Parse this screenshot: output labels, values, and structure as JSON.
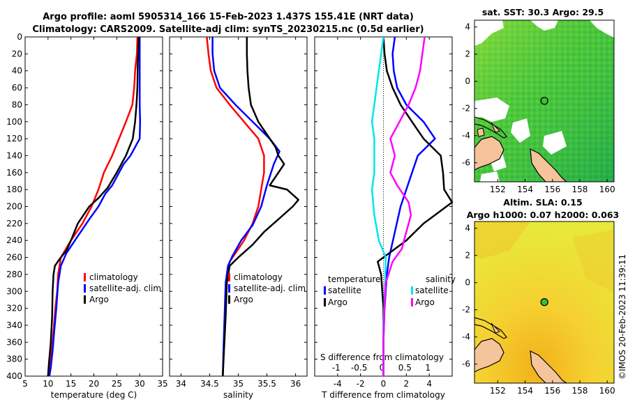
{
  "figure": {
    "title_line1": "Argo profile: aoml 5905314_166 15-Feb-2023 1.437S 155.41E (NRT data)",
    "title_line2": "Climatology: CARS2009. Satellite-adj clim: synTS_20230215.nc (0.5d earlier)",
    "credit": "©IMOS 20-Feb-2023 11:39:11"
  },
  "colors": {
    "climatology": "#ff0000",
    "satellite": "#0000ff",
    "argo": "#000000",
    "salinity_satellite": "#00e5ee",
    "salinity_argo": "#ff00ff",
    "land": "#f5c49b"
  },
  "chart_data": [
    {
      "id": "temperature",
      "type": "line",
      "xlabel": "temperature (deg C)",
      "xlim": [
        5,
        35
      ],
      "xticks": [
        5,
        10,
        15,
        20,
        25,
        30,
        35
      ],
      "ylim": [
        0,
        400
      ],
      "yticks": [
        0,
        20,
        40,
        60,
        80,
        100,
        120,
        140,
        160,
        180,
        200,
        220,
        240,
        260,
        280,
        300,
        320,
        340,
        360,
        380,
        400
      ],
      "legend": [
        "climatology",
        "satellite-adj. clim",
        "Argo"
      ],
      "series": [
        {
          "name": "climatology",
          "color": "#ff0000",
          "points": [
            [
              29.5,
              0
            ],
            [
              29.4,
              20
            ],
            [
              29.0,
              40
            ],
            [
              28.8,
              60
            ],
            [
              28.4,
              80
            ],
            [
              27.0,
              100
            ],
            [
              25.5,
              120
            ],
            [
              24.0,
              140
            ],
            [
              22.2,
              160
            ],
            [
              21.0,
              180
            ],
            [
              19.5,
              200
            ],
            [
              17.5,
              220
            ],
            [
              15.0,
              240
            ],
            [
              12.8,
              260
            ],
            [
              12.2,
              280
            ],
            [
              12.0,
              300
            ],
            [
              11.6,
              320
            ],
            [
              11.3,
              340
            ],
            [
              11.0,
              360
            ],
            [
              10.6,
              380
            ],
            [
              10.2,
              400
            ]
          ]
        },
        {
          "name": "satellite-adj. clim",
          "color": "#0000ff",
          "points": [
            [
              30.0,
              0
            ],
            [
              30.0,
              40
            ],
            [
              30.0,
              80
            ],
            [
              30.1,
              100
            ],
            [
              30.0,
              120
            ],
            [
              28.0,
              140
            ],
            [
              26.5,
              150
            ],
            [
              25.5,
              160
            ],
            [
              24.0,
              175
            ],
            [
              22.5,
              185
            ],
            [
              21.0,
              200
            ],
            [
              19.0,
              215
            ],
            [
              16.5,
              235
            ],
            [
              14.0,
              255
            ],
            [
              12.8,
              270
            ],
            [
              12.2,
              290
            ],
            [
              11.8,
              320
            ],
            [
              11.3,
              350
            ],
            [
              11.0,
              370
            ],
            [
              10.6,
              390
            ],
            [
              10.3,
              400
            ]
          ]
        },
        {
          "name": "Argo",
          "color": "#000000",
          "points": [
            [
              29.8,
              0
            ],
            [
              29.6,
              30
            ],
            [
              29.5,
              60
            ],
            [
              29.3,
              80
            ],
            [
              29.0,
              100
            ],
            [
              28.5,
              120
            ],
            [
              27.0,
              140
            ],
            [
              25.0,
              160
            ],
            [
              23.0,
              178
            ],
            [
              21.0,
              190
            ],
            [
              19.0,
              200
            ],
            [
              16.5,
              220
            ],
            [
              15.0,
              240
            ],
            [
              14.0,
              252
            ],
            [
              12.5,
              262
            ],
            [
              11.5,
              270
            ],
            [
              11.2,
              280
            ],
            [
              11.0,
              300
            ],
            [
              10.9,
              330
            ],
            [
              10.6,
              360
            ],
            [
              10.2,
              385
            ],
            [
              10.0,
              400
            ]
          ]
        }
      ]
    },
    {
      "id": "salinity",
      "type": "line",
      "xlabel": "salinity",
      "xlim": [
        33.8,
        36.2
      ],
      "xticks": [
        34,
        34.5,
        35,
        35.5,
        36
      ],
      "ylim": [
        0,
        400
      ],
      "legend": [
        "climatology",
        "satellite-adj. clim",
        "Argo"
      ],
      "series": [
        {
          "name": "climatology",
          "color": "#ff0000",
          "points": [
            [
              34.45,
              0
            ],
            [
              34.48,
              20
            ],
            [
              34.52,
              40
            ],
            [
              34.62,
              60
            ],
            [
              34.85,
              80
            ],
            [
              35.1,
              100
            ],
            [
              35.35,
              120
            ],
            [
              35.45,
              140
            ],
            [
              35.45,
              160
            ],
            [
              35.4,
              180
            ],
            [
              35.35,
              200
            ],
            [
              35.25,
              220
            ],
            [
              35.1,
              240
            ],
            [
              34.95,
              255
            ],
            [
              34.85,
              265
            ],
            [
              34.8,
              280
            ],
            [
              34.77,
              320
            ],
            [
              34.75,
              360
            ],
            [
              34.73,
              400
            ]
          ]
        },
        {
          "name": "satellite-adj. clim",
          "color": "#0000ff",
          "points": [
            [
              34.55,
              0
            ],
            [
              34.55,
              20
            ],
            [
              34.58,
              40
            ],
            [
              34.68,
              60
            ],
            [
              34.95,
              80
            ],
            [
              35.25,
              100
            ],
            [
              35.55,
              120
            ],
            [
              35.72,
              135
            ],
            [
              35.62,
              150
            ],
            [
              35.5,
              175
            ],
            [
              35.4,
              200
            ],
            [
              35.25,
              222
            ],
            [
              35.05,
              240
            ],
            [
              34.9,
              258
            ],
            [
              34.82,
              270
            ],
            [
              34.78,
              290
            ],
            [
              34.76,
              330
            ],
            [
              34.74,
              370
            ],
            [
              34.73,
              400
            ]
          ]
        },
        {
          "name": "Argo",
          "color": "#000000",
          "points": [
            [
              35.15,
              0
            ],
            [
              35.15,
              20
            ],
            [
              35.16,
              40
            ],
            [
              35.18,
              60
            ],
            [
              35.22,
              80
            ],
            [
              35.35,
              100
            ],
            [
              35.5,
              115
            ],
            [
              35.65,
              130
            ],
            [
              35.7,
              140
            ],
            [
              35.8,
              150
            ],
            [
              35.7,
              160
            ],
            [
              35.55,
              175
            ],
            [
              35.85,
              180
            ],
            [
              36.05,
              192
            ],
            [
              35.95,
              200
            ],
            [
              35.7,
              215
            ],
            [
              35.45,
              230
            ],
            [
              35.25,
              245
            ],
            [
              35.0,
              260
            ],
            [
              34.85,
              270
            ],
            [
              34.8,
              290
            ],
            [
              34.78,
              330
            ],
            [
              34.75,
              370
            ],
            [
              34.73,
              400
            ]
          ]
        }
      ]
    },
    {
      "id": "difference",
      "type": "line",
      "xlabel": "T difference from climatology",
      "xlim": [
        -6,
        6
      ],
      "xticks": [
        -4,
        -2,
        0,
        2,
        4
      ],
      "top_axis": {
        "label": "S difference from climatology",
        "ticks": [
          "-1",
          "-0.5",
          "0",
          "0.5",
          "1"
        ],
        "values": [
          -1,
          -0.5,
          0,
          0.5,
          1
        ]
      },
      "ylim": [
        0,
        400
      ],
      "legend": {
        "temperature": [
          "satellite",
          "Argo"
        ],
        "salinity": [
          "satellite",
          "Argo"
        ]
      },
      "legend_headers": {
        "temperature": "temperature",
        "salinity": "salinity"
      },
      "series": [
        {
          "name": "temperature satellite",
          "color": "#0000ff",
          "points": [
            [
              1.0,
              0
            ],
            [
              0.8,
              20
            ],
            [
              0.9,
              40
            ],
            [
              1.2,
              60
            ],
            [
              2.0,
              80
            ],
            [
              3.5,
              100
            ],
            [
              4.5,
              120
            ],
            [
              3.0,
              140
            ],
            [
              2.5,
              160
            ],
            [
              2.0,
              180
            ],
            [
              1.5,
              200
            ],
            [
              1.0,
              230
            ],
            [
              0.5,
              260
            ],
            [
              0.3,
              280
            ],
            [
              0.1,
              320
            ],
            [
              0.0,
              360
            ],
            [
              0.0,
              400
            ]
          ]
        },
        {
          "name": "temperature Argo",
          "color": "#000000",
          "points": [
            [
              0.0,
              0
            ],
            [
              0.1,
              20
            ],
            [
              0.3,
              40
            ],
            [
              0.8,
              60
            ],
            [
              1.5,
              80
            ],
            [
              2.5,
              100
            ],
            [
              3.5,
              120
            ],
            [
              5.0,
              140
            ],
            [
              5.2,
              160
            ],
            [
              5.3,
              180
            ],
            [
              6.0,
              195
            ],
            [
              4.5,
              210
            ],
            [
              3.5,
              220
            ],
            [
              2.0,
              240
            ],
            [
              0.5,
              255
            ],
            [
              -0.5,
              265
            ],
            [
              -0.2,
              280
            ],
            [
              0.0,
              320
            ],
            [
              0.0,
              360
            ],
            [
              0.0,
              400
            ]
          ]
        },
        {
          "name": "salinity satellite",
          "color": "#00e5ee",
          "points": [
            [
              0.0,
              0
            ],
            [
              -0.1,
              40
            ],
            [
              -0.2,
              80
            ],
            [
              -0.25,
              100
            ],
            [
              -0.2,
              120
            ],
            [
              -0.2,
              160
            ],
            [
              -0.25,
              180
            ],
            [
              -0.2,
              210
            ],
            [
              -0.1,
              240
            ],
            [
              0.05,
              260
            ],
            [
              0.03,
              300
            ],
            [
              0.0,
              340
            ],
            [
              0.0,
              400
            ]
          ]
        },
        {
          "name": "salinity Argo",
          "color": "#ff00ff",
          "points": [
            [
              0.9,
              0
            ],
            [
              0.85,
              20
            ],
            [
              0.8,
              40
            ],
            [
              0.7,
              60
            ],
            [
              0.55,
              80
            ],
            [
              0.35,
              100
            ],
            [
              0.15,
              120
            ],
            [
              0.25,
              140
            ],
            [
              0.15,
              160
            ],
            [
              0.3,
              175
            ],
            [
              0.55,
              195
            ],
            [
              0.6,
              210
            ],
            [
              0.5,
              230
            ],
            [
              0.4,
              250
            ],
            [
              0.2,
              265
            ],
            [
              0.05,
              290
            ],
            [
              0.02,
              320
            ],
            [
              0.0,
              360
            ],
            [
              0.0,
              400
            ]
          ]
        }
      ]
    },
    {
      "id": "sst_map",
      "type": "heatmap",
      "title": "sat. SST: 30.3 Argo: 29.5",
      "xlim": [
        150.3,
        160.5
      ],
      "ylim": [
        -7.4,
        4.5
      ],
      "xticks": [
        152,
        154,
        156,
        158,
        160
      ],
      "yticks": [
        4,
        2,
        0,
        -2,
        -4,
        -6
      ],
      "marker": {
        "lon": 155.41,
        "lat": -1.437
      }
    },
    {
      "id": "sla_map",
      "type": "heatmap",
      "title": "Altim. SLA: 0.15",
      "subtitle": "Argo h1000: 0.07 h2000: 0.063",
      "xlim": [
        150.3,
        160.5
      ],
      "ylim": [
        -7.4,
        4.5
      ],
      "xticks": [
        152,
        154,
        156,
        158,
        160
      ],
      "yticks": [
        4,
        2,
        0,
        -2,
        -4,
        -6
      ],
      "marker": {
        "lon": 155.41,
        "lat": -1.437
      }
    }
  ]
}
